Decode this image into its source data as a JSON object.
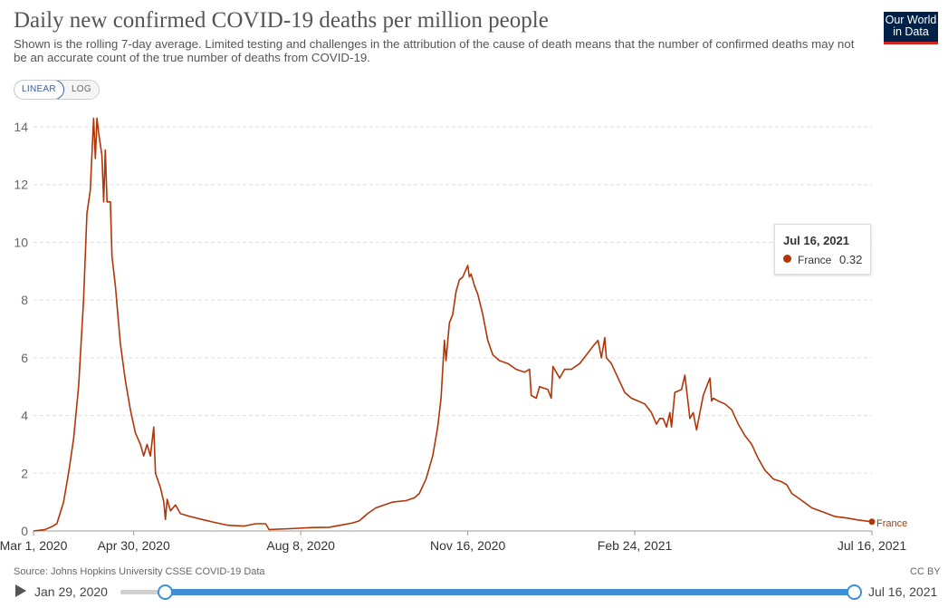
{
  "header": {
    "title": "Daily new confirmed COVID-19 deaths per million people",
    "subtitle": "Shown is the rolling 7-day average. Limited testing and challenges in the attribution of the cause of death means that the number of confirmed deaths may not be an accurate count of the true number of deaths from COVID-19.",
    "logo_line1": "Our World",
    "logo_line2": "in Data"
  },
  "controls": {
    "linear_label": "LINEAR",
    "log_label": "LOG",
    "selected_scale": "linear"
  },
  "tooltip": {
    "date": "Jul 16, 2021",
    "country": "France",
    "value": "0.32",
    "color": "#b13507"
  },
  "footer": {
    "source": "Source: Johns Hopkins University CSSE COVID-19 Data",
    "license": "CC BY"
  },
  "timeline": {
    "start_label": "Jan 29, 2020",
    "end_label": "Jul 16, 2021",
    "play_icon": "play-icon"
  },
  "chart_data": {
    "type": "line",
    "title": "Daily new confirmed COVID-19 deaths per million people",
    "xlabel": "",
    "ylabel": "",
    "ylim": [
      0,
      14
    ],
    "yticks": [
      0,
      2,
      4,
      6,
      8,
      10,
      12,
      14
    ],
    "xticks": [
      "2020-03-01",
      "2020-04-30",
      "2020-08-08",
      "2020-11-16",
      "2021-02-24",
      "2021-07-16"
    ],
    "xtick_labels": [
      "Mar 1, 2020",
      "Apr 30, 2020",
      "Aug 8, 2020",
      "Nov 16, 2020",
      "Feb 24, 2021",
      "Jul 16, 2021"
    ],
    "xrange": [
      "2020-03-01",
      "2021-07-16"
    ],
    "grid": "horizontal dashed",
    "series": [
      {
        "name": "France",
        "color": "#b13507",
        "end_label": "France",
        "points": [
          [
            "2020-03-01",
            0.0
          ],
          [
            "2020-03-08",
            0.05
          ],
          [
            "2020-03-12",
            0.15
          ],
          [
            "2020-03-15",
            0.25
          ],
          [
            "2020-03-19",
            1.0
          ],
          [
            "2020-03-22",
            2.0
          ],
          [
            "2020-03-25",
            3.2
          ],
          [
            "2020-03-28",
            5.0
          ],
          [
            "2020-03-31",
            8.0
          ],
          [
            "2020-04-02",
            11.0
          ],
          [
            "2020-04-04",
            11.8
          ],
          [
            "2020-04-06",
            14.3
          ],
          [
            "2020-04-07",
            12.9
          ],
          [
            "2020-04-08",
            14.3
          ],
          [
            "2020-04-09",
            13.8
          ],
          [
            "2020-04-11",
            13.0
          ],
          [
            "2020-04-12",
            11.4
          ],
          [
            "2020-04-13",
            13.2
          ],
          [
            "2020-04-14",
            11.4
          ],
          [
            "2020-04-16",
            11.4
          ],
          [
            "2020-04-17",
            9.5
          ],
          [
            "2020-04-19",
            8.5
          ],
          [
            "2020-04-22",
            6.5
          ],
          [
            "2020-04-25",
            5.2
          ],
          [
            "2020-04-28",
            4.2
          ],
          [
            "2020-05-01",
            3.4
          ],
          [
            "2020-05-04",
            3.0
          ],
          [
            "2020-05-06",
            2.6
          ],
          [
            "2020-05-08",
            3.0
          ],
          [
            "2020-05-10",
            2.6
          ],
          [
            "2020-05-12",
            3.6
          ],
          [
            "2020-05-13",
            2.0
          ],
          [
            "2020-05-16",
            1.5
          ],
          [
            "2020-05-18",
            1.0
          ],
          [
            "2020-05-19",
            0.4
          ],
          [
            "2020-05-20",
            1.1
          ],
          [
            "2020-05-22",
            0.7
          ],
          [
            "2020-05-25",
            0.9
          ],
          [
            "2020-05-28",
            0.6
          ],
          [
            "2020-06-03",
            0.5
          ],
          [
            "2020-06-10",
            0.4
          ],
          [
            "2020-06-17",
            0.3
          ],
          [
            "2020-06-25",
            0.2
          ],
          [
            "2020-07-05",
            0.17
          ],
          [
            "2020-07-12",
            0.25
          ],
          [
            "2020-07-18",
            0.25
          ],
          [
            "2020-07-20",
            0.05
          ],
          [
            "2020-08-01",
            0.08
          ],
          [
            "2020-08-15",
            0.12
          ],
          [
            "2020-08-25",
            0.13
          ],
          [
            "2020-09-01",
            0.2
          ],
          [
            "2020-09-08",
            0.28
          ],
          [
            "2020-09-12",
            0.35
          ],
          [
            "2020-09-17",
            0.6
          ],
          [
            "2020-09-22",
            0.8
          ],
          [
            "2020-09-27",
            0.9
          ],
          [
            "2020-10-02",
            1.0
          ],
          [
            "2020-10-10",
            1.05
          ],
          [
            "2020-10-15",
            1.15
          ],
          [
            "2020-10-18",
            1.3
          ],
          [
            "2020-10-22",
            1.8
          ],
          [
            "2020-10-26",
            2.6
          ],
          [
            "2020-10-29",
            3.6
          ],
          [
            "2020-10-31",
            4.6
          ],
          [
            "2020-11-02",
            6.6
          ],
          [
            "2020-11-03",
            5.9
          ],
          [
            "2020-11-05",
            7.2
          ],
          [
            "2020-11-07",
            7.5
          ],
          [
            "2020-11-09",
            8.3
          ],
          [
            "2020-11-11",
            8.7
          ],
          [
            "2020-11-13",
            8.8
          ],
          [
            "2020-11-16",
            9.2
          ],
          [
            "2020-11-17",
            8.8
          ],
          [
            "2020-11-18",
            8.9
          ],
          [
            "2020-11-20",
            8.5
          ],
          [
            "2020-11-22",
            8.2
          ],
          [
            "2020-11-25",
            7.5
          ],
          [
            "2020-11-28",
            6.6
          ],
          [
            "2020-12-01",
            6.1
          ],
          [
            "2020-12-05",
            5.9
          ],
          [
            "2020-12-10",
            5.8
          ],
          [
            "2020-12-15",
            5.6
          ],
          [
            "2020-12-20",
            5.5
          ],
          [
            "2020-12-23",
            5.6
          ],
          [
            "2020-12-24",
            4.7
          ],
          [
            "2020-12-27",
            4.6
          ],
          [
            "2020-12-29",
            5.0
          ],
          [
            "2021-01-03",
            4.9
          ],
          [
            "2021-01-05",
            4.6
          ],
          [
            "2021-01-06",
            5.7
          ],
          [
            "2021-01-08",
            5.5
          ],
          [
            "2021-01-10",
            5.3
          ],
          [
            "2021-01-13",
            5.6
          ],
          [
            "2021-01-17",
            5.6
          ],
          [
            "2021-01-22",
            5.8
          ],
          [
            "2021-01-26",
            6.1
          ],
          [
            "2021-01-30",
            6.4
          ],
          [
            "2021-02-02",
            6.6
          ],
          [
            "2021-02-04",
            6.0
          ],
          [
            "2021-02-06",
            6.7
          ],
          [
            "2021-02-07",
            6.0
          ],
          [
            "2021-02-10",
            5.8
          ],
          [
            "2021-02-14",
            5.3
          ],
          [
            "2021-02-18",
            4.8
          ],
          [
            "2021-02-22",
            4.6
          ],
          [
            "2021-02-26",
            4.5
          ],
          [
            "2021-03-02",
            4.4
          ],
          [
            "2021-03-06",
            4.1
          ],
          [
            "2021-03-09",
            3.7
          ],
          [
            "2021-03-11",
            3.9
          ],
          [
            "2021-03-13",
            3.9
          ],
          [
            "2021-03-15",
            3.6
          ],
          [
            "2021-03-17",
            4.1
          ],
          [
            "2021-03-18",
            3.6
          ],
          [
            "2021-03-20",
            4.8
          ],
          [
            "2021-03-24",
            4.9
          ],
          [
            "2021-03-26",
            5.4
          ],
          [
            "2021-03-28",
            4.4
          ],
          [
            "2021-03-29",
            3.9
          ],
          [
            "2021-03-31",
            4.1
          ],
          [
            "2021-04-02",
            3.5
          ],
          [
            "2021-04-04",
            4.1
          ],
          [
            "2021-04-06",
            4.7
          ],
          [
            "2021-04-08",
            5.0
          ],
          [
            "2021-04-10",
            5.3
          ],
          [
            "2021-04-11",
            4.5
          ],
          [
            "2021-04-12",
            4.6
          ],
          [
            "2021-04-15",
            4.5
          ],
          [
            "2021-04-19",
            4.4
          ],
          [
            "2021-04-23",
            4.2
          ],
          [
            "2021-04-27",
            3.7
          ],
          [
            "2021-05-01",
            3.3
          ],
          [
            "2021-05-05",
            3.0
          ],
          [
            "2021-05-09",
            2.5
          ],
          [
            "2021-05-13",
            2.1
          ],
          [
            "2021-05-18",
            1.8
          ],
          [
            "2021-05-23",
            1.7
          ],
          [
            "2021-05-26",
            1.6
          ],
          [
            "2021-05-29",
            1.3
          ],
          [
            "2021-06-03",
            1.1
          ],
          [
            "2021-06-10",
            0.8
          ],
          [
            "2021-06-17",
            0.65
          ],
          [
            "2021-06-24",
            0.5
          ],
          [
            "2021-07-01",
            0.45
          ],
          [
            "2021-07-08",
            0.38
          ],
          [
            "2021-07-16",
            0.32
          ]
        ]
      }
    ]
  }
}
